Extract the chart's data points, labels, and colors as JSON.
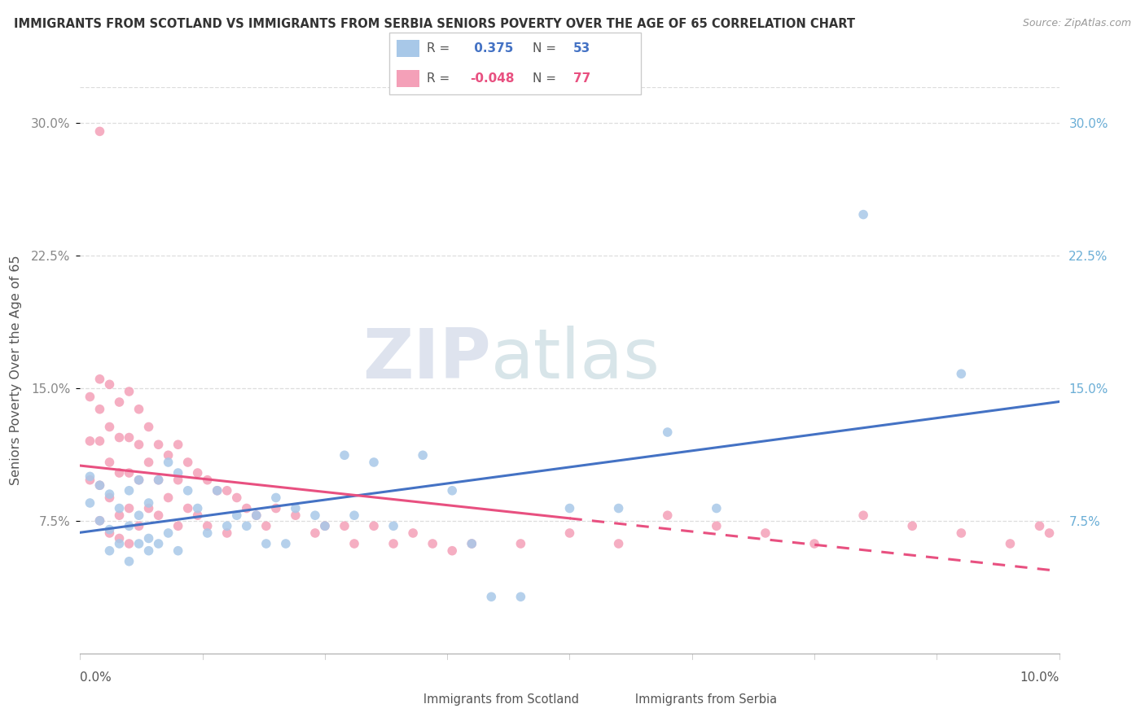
{
  "title": "IMMIGRANTS FROM SCOTLAND VS IMMIGRANTS FROM SERBIA SENIORS POVERTY OVER THE AGE OF 65 CORRELATION CHART",
  "source": "Source: ZipAtlas.com",
  "ylabel": "Seniors Poverty Over the Age of 65",
  "ylim": [
    0.0,
    0.32
  ],
  "xlim": [
    0.0,
    0.1
  ],
  "yticks": [
    0.075,
    0.15,
    0.225,
    0.3
  ],
  "ytick_labels": [
    "7.5%",
    "15.0%",
    "22.5%",
    "30.0%"
  ],
  "scotland_color": "#a8c8e8",
  "serbia_color": "#f4a0b8",
  "scotland_R": 0.375,
  "scotland_N": 53,
  "serbia_R": -0.048,
  "serbia_N": 77,
  "scotland_line_color": "#4472c4",
  "serbia_line_color": "#e85080",
  "watermark_zip": "ZIP",
  "watermark_atlas": "atlas",
  "legend_label_scotland": "Immigrants from Scotland",
  "legend_label_serbia": "Immigrants from Serbia",
  "scotland_points_x": [
    0.001,
    0.001,
    0.002,
    0.002,
    0.003,
    0.003,
    0.003,
    0.004,
    0.004,
    0.005,
    0.005,
    0.005,
    0.006,
    0.006,
    0.006,
    0.007,
    0.007,
    0.007,
    0.008,
    0.008,
    0.009,
    0.009,
    0.01,
    0.01,
    0.011,
    0.012,
    0.013,
    0.014,
    0.015,
    0.016,
    0.017,
    0.018,
    0.019,
    0.02,
    0.021,
    0.022,
    0.024,
    0.025,
    0.027,
    0.028,
    0.03,
    0.032,
    0.035,
    0.038,
    0.04,
    0.042,
    0.045,
    0.05,
    0.055,
    0.06,
    0.065,
    0.08,
    0.09
  ],
  "scotland_points_y": [
    0.1,
    0.085,
    0.095,
    0.075,
    0.09,
    0.07,
    0.058,
    0.082,
    0.062,
    0.092,
    0.072,
    0.052,
    0.098,
    0.078,
    0.062,
    0.085,
    0.065,
    0.058,
    0.098,
    0.062,
    0.108,
    0.068,
    0.102,
    0.058,
    0.092,
    0.082,
    0.068,
    0.092,
    0.072,
    0.078,
    0.072,
    0.078,
    0.062,
    0.088,
    0.062,
    0.082,
    0.078,
    0.072,
    0.112,
    0.078,
    0.108,
    0.072,
    0.112,
    0.092,
    0.062,
    0.032,
    0.032,
    0.082,
    0.082,
    0.125,
    0.082,
    0.248,
    0.158
  ],
  "serbia_points_x": [
    0.001,
    0.001,
    0.001,
    0.002,
    0.002,
    0.002,
    0.002,
    0.002,
    0.003,
    0.003,
    0.003,
    0.003,
    0.004,
    0.004,
    0.004,
    0.004,
    0.005,
    0.005,
    0.005,
    0.005,
    0.005,
    0.006,
    0.006,
    0.006,
    0.006,
    0.007,
    0.007,
    0.007,
    0.008,
    0.008,
    0.008,
    0.009,
    0.009,
    0.01,
    0.01,
    0.01,
    0.011,
    0.011,
    0.012,
    0.012,
    0.013,
    0.013,
    0.014,
    0.015,
    0.015,
    0.016,
    0.017,
    0.018,
    0.019,
    0.02,
    0.022,
    0.024,
    0.025,
    0.027,
    0.028,
    0.03,
    0.032,
    0.034,
    0.036,
    0.038,
    0.04,
    0.045,
    0.05,
    0.055,
    0.06,
    0.065,
    0.07,
    0.075,
    0.08,
    0.085,
    0.09,
    0.095,
    0.098,
    0.099,
    0.002,
    0.003,
    0.004
  ],
  "serbia_points_y": [
    0.145,
    0.12,
    0.098,
    0.155,
    0.138,
    0.12,
    0.095,
    0.075,
    0.152,
    0.128,
    0.108,
    0.088,
    0.142,
    0.122,
    0.102,
    0.078,
    0.148,
    0.122,
    0.102,
    0.082,
    0.062,
    0.138,
    0.118,
    0.098,
    0.072,
    0.128,
    0.108,
    0.082,
    0.118,
    0.098,
    0.078,
    0.112,
    0.088,
    0.118,
    0.098,
    0.072,
    0.108,
    0.082,
    0.102,
    0.078,
    0.098,
    0.072,
    0.092,
    0.092,
    0.068,
    0.088,
    0.082,
    0.078,
    0.072,
    0.082,
    0.078,
    0.068,
    0.072,
    0.072,
    0.062,
    0.072,
    0.062,
    0.068,
    0.062,
    0.058,
    0.062,
    0.062,
    0.068,
    0.062,
    0.078,
    0.072,
    0.068,
    0.062,
    0.078,
    0.072,
    0.068,
    0.062,
    0.072,
    0.068,
    0.295,
    0.068,
    0.065
  ]
}
